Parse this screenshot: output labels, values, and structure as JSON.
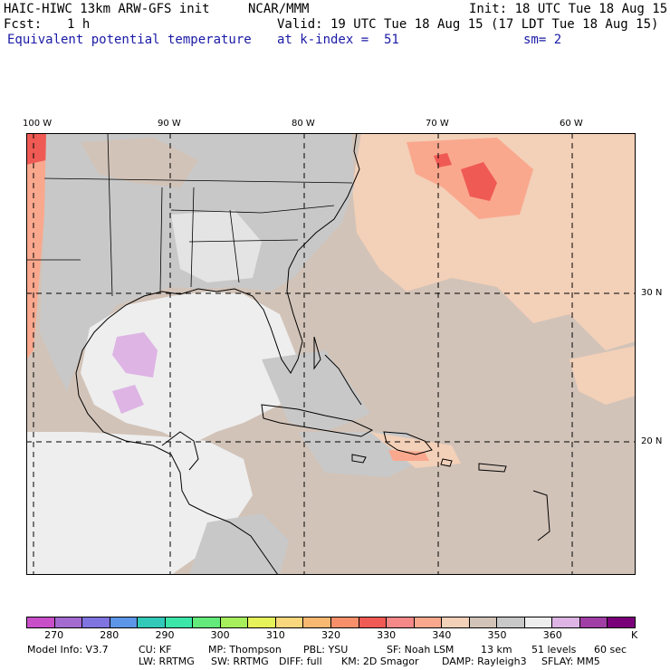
{
  "header": {
    "model_line": "HAIC-HIWC 13km ARW-GFS init",
    "org": "NCAR/MMM",
    "init": "Init: 18 UTC Tue 18 Aug 15",
    "fcst_label": "Fcst:",
    "fcst_value": "1 h",
    "valid": "Valid: 19 UTC Tue 18 Aug 15 (17 LDT Tue 18 Aug 15)",
    "field": "Equivalent potential temperature",
    "level": "at k-index =  51",
    "smooth": "sm= 2"
  },
  "map": {
    "lon_labels": [
      "100 W",
      "90 W",
      "80 W",
      "70 W",
      "60 W"
    ],
    "lat_labels": [
      "30 N",
      "20 N"
    ],
    "colors": {
      "land_gray": "#c8c8c8",
      "warm_gray": "#d2c3b8",
      "light": "#eeeeee",
      "peach": "#f3d0b8",
      "salmon": "#f9a88e",
      "red": "#f05a54",
      "lilac": "#ddb4e4",
      "coast": "#000000"
    }
  },
  "legend": {
    "colors": [
      "#c94fc9",
      "#a36ad0",
      "#7f74e0",
      "#5d95e8",
      "#33c9b8",
      "#3be6a8",
      "#63ea7a",
      "#a6ee5c",
      "#e6f25a",
      "#f9d77d",
      "#f9b872",
      "#f7906a",
      "#f05a54",
      "#f58888",
      "#f9a88e",
      "#f3d0b8",
      "#d2c3b8",
      "#c8c8c8",
      "#eeeeee",
      "#ddb4e4",
      "#a13ea6",
      "#7a007a"
    ],
    "ticks": [
      "270",
      "280",
      "290",
      "300",
      "310",
      "320",
      "330",
      "340",
      "350",
      "360"
    ],
    "unit": "K"
  },
  "footer": {
    "line1": [
      "Model Info: V3.7",
      "CU: KF",
      "MP: Thompson",
      "PBL: YSU",
      "SF: Noah LSM",
      "13 km",
      "51 levels",
      "60 sec"
    ],
    "line2": [
      "LW: RRTMG",
      "SW: RRTMG",
      "DIFF: full",
      "KM: 2D Smagor",
      "DAMP: Rayleigh3",
      "SFLAY: MM5"
    ]
  }
}
